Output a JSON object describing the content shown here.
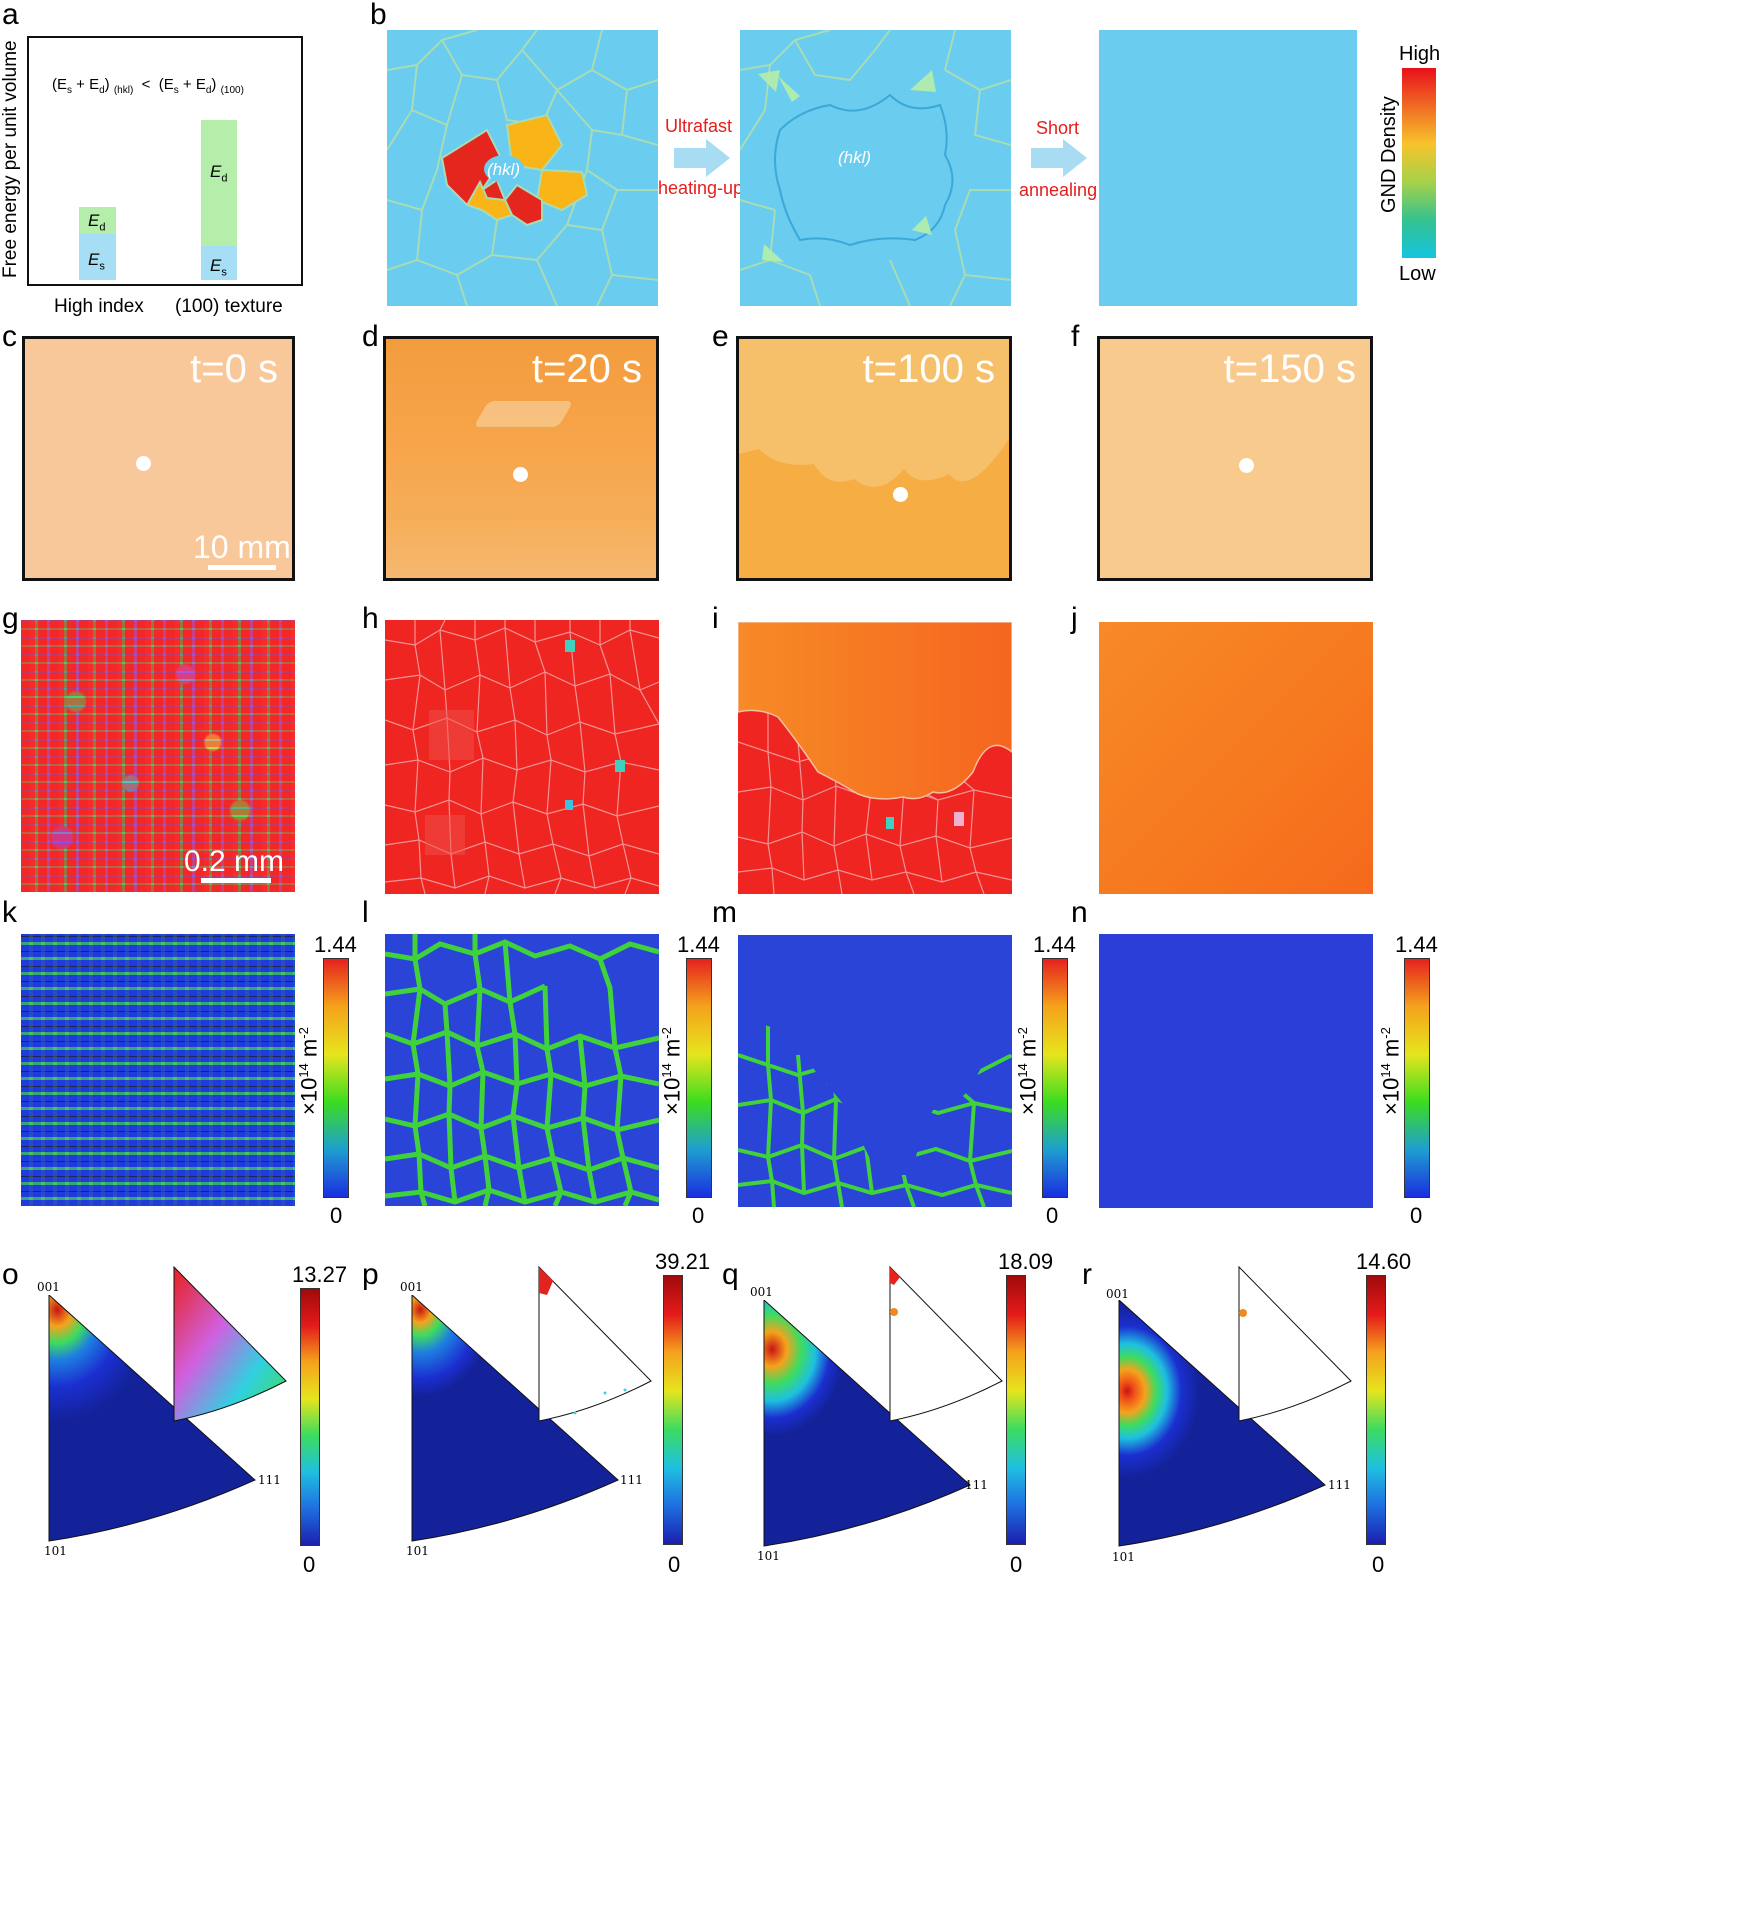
{
  "panels": {
    "a": {
      "label": "a",
      "formula_left": "(E",
      "formula_left_sub_s": "s",
      "formula_left_plus": " + E",
      "formula_left_sub_d": "d",
      "formula_left_close": ")",
      "formula_left_subscript": "(hkl)",
      "formula_lt": "<",
      "formula_right_subscript": "(100)",
      "ylabel": "Free energy per unit volume",
      "bar_high_index": {
        "xlabel": "High index",
        "Es_fraction": 0.55,
        "Ed_fraction": 0.45,
        "total": 0.28
      },
      "bar_100": {
        "xlabel": "(100) texture",
        "Es_fraction": 0.22,
        "Ed_fraction": 0.78,
        "total": 0.62
      },
      "Es": "E",
      "Es_sub": "s",
      "Ed": "E",
      "Ed_sub": "d",
      "color_Es": "#a6dff5",
      "color_Ed": "#b5eeaa"
    },
    "b": {
      "label": "b",
      "hkl_1": "(hkl)",
      "hkl_2": "(hkl)",
      "arrow1_top": "Ultrafast",
      "arrow1_bottom": "heating-up",
      "arrow2_top": "Short",
      "arrow2_bottom": "annealing",
      "colorbar_high": "High",
      "colorbar_low": "Low",
      "colorbar_title": "GND Density",
      "grain_bg": "#6accef",
      "grain_boundary": "#a8dcb4"
    },
    "photos": [
      {
        "label": "c",
        "time": "t=0 s",
        "scale": "10 mm",
        "color": "#f8c89a"
      },
      {
        "label": "d",
        "time": "t=20 s",
        "color": "#f7a44a"
      },
      {
        "label": "e",
        "time": "t=100 s",
        "color": "#f5b353"
      },
      {
        "label": "f",
        "time": "t=150 s",
        "color": "#f9ca8e"
      }
    ],
    "ebsd": [
      {
        "label": "g",
        "scale": "0.2 mm"
      },
      {
        "label": "h"
      },
      {
        "label": "i"
      },
      {
        "label": "j"
      }
    ],
    "gnd": [
      {
        "label": "k",
        "max": "1.44",
        "min": "0",
        "unit": "×10",
        "unit_exp": "14",
        "unit_tail": " m",
        "unit_exp2": "-2"
      },
      {
        "label": "l",
        "max": "1.44",
        "min": "0",
        "unit": "×10",
        "unit_exp": "14",
        "unit_tail": " m",
        "unit_exp2": "-2"
      },
      {
        "label": "m",
        "max": "1.44",
        "min": "0",
        "unit": "×10",
        "unit_exp": "14",
        "unit_tail": " m",
        "unit_exp2": "-2"
      },
      {
        "label": "n",
        "max": "1.44",
        "min": "0",
        "unit": "×10",
        "unit_exp": "14",
        "unit_tail": " m",
        "unit_exp2": "-2"
      }
    ],
    "pole": [
      {
        "label": "o",
        "max": "13.27",
        "min": "0",
        "c001": "001",
        "c101": "101",
        "c111": "111"
      },
      {
        "label": "p",
        "max": "39.21",
        "min": "0",
        "c001": "001",
        "c101": "101",
        "c111": "111"
      },
      {
        "label": "q",
        "max": "18.09",
        "min": "0",
        "c001": "001",
        "c101": "101",
        "c111": "111"
      },
      {
        "label": "r",
        "max": "14.60",
        "min": "0",
        "c001": "001",
        "c101": "101",
        "c111": "111"
      }
    ]
  }
}
